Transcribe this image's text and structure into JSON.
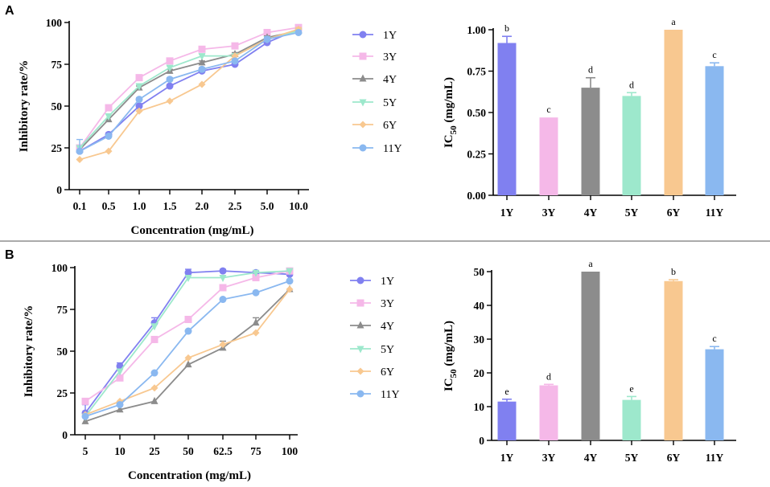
{
  "colors": {
    "1Y": "#8080f0",
    "3Y": "#f5b8e8",
    "4Y": "#8c8c8c",
    "5Y": "#9de8cc",
    "6Y": "#f8c890",
    "11Y": "#8ab8f0"
  },
  "panels": [
    {
      "letter": "A"
    },
    {
      "letter": "B"
    }
  ],
  "chart_data": [
    {
      "type": "line",
      "panel": "A",
      "xlabel": "Concentration (mg/mL)",
      "ylabel": "Inhibitory rate/%",
      "categories": [
        "0.1",
        "0.5",
        "1.0",
        "1.5",
        "2.0",
        "2.5",
        "5.0",
        "10.0"
      ],
      "ylim": [
        0,
        100
      ],
      "yticks": [
        "0",
        "25",
        "50",
        "75",
        "100"
      ],
      "series": [
        {
          "name": "1Y",
          "marker": "circle",
          "values": [
            23,
            33,
            50,
            62,
            71,
            75,
            88,
            96
          ],
          "errors": [
            0,
            0,
            1.5,
            1,
            1,
            1,
            1,
            1
          ]
        },
        {
          "name": "3Y",
          "marker": "square",
          "values": [
            25,
            49,
            67,
            77,
            84,
            86,
            94,
            97
          ],
          "errors": [
            0,
            0,
            1,
            1,
            1,
            1,
            1,
            1
          ]
        },
        {
          "name": "4Y",
          "marker": "triangle",
          "values": [
            24,
            42,
            61,
            71,
            76,
            81,
            91,
            95
          ],
          "errors": [
            0,
            0,
            1,
            1,
            1,
            1,
            1,
            1
          ]
        },
        {
          "name": "5Y",
          "marker": "triangle-down",
          "values": [
            25,
            44,
            62,
            73,
            80,
            80,
            90,
            95
          ],
          "errors": [
            0,
            0,
            1,
            1,
            1,
            1,
            1,
            1
          ]
        },
        {
          "name": "6Y",
          "marker": "diamond",
          "values": [
            18,
            23,
            47,
            53,
            63,
            80,
            90,
            96
          ],
          "errors": [
            0,
            0,
            0,
            0,
            0,
            0,
            1,
            1
          ]
        },
        {
          "name": "11Y",
          "marker": "circle",
          "values": [
            23,
            32,
            54,
            66,
            72,
            77,
            90,
            94
          ],
          "errors": [
            7,
            0,
            1,
            1,
            1,
            1,
            1,
            1
          ]
        }
      ]
    },
    {
      "type": "bar",
      "panel": "A",
      "ylabel": "IC",
      "ylabel_sub": "50",
      "ylabel_unit": " (mg/mL)",
      "categories": [
        "1Y",
        "3Y",
        "4Y",
        "5Y",
        "6Y",
        "11Y"
      ],
      "values": [
        0.92,
        0.47,
        0.65,
        0.6,
        1.0,
        0.78
      ],
      "errors": [
        0.04,
        0,
        0.06,
        0.02,
        0,
        0.02
      ],
      "significance": [
        "b",
        "c",
        "d",
        "d",
        "a",
        "c"
      ],
      "ylim": [
        0,
        1
      ],
      "yticks": [
        "0.00",
        "0.25",
        "0.50",
        "0.75",
        "1.00"
      ]
    },
    {
      "type": "line",
      "panel": "B",
      "xlabel": "Concentration (mg/mL)",
      "ylabel": "Inhibitory rate/%",
      "categories": [
        "5",
        "10",
        "25",
        "50",
        "62.5",
        "75",
        "100"
      ],
      "ylim": [
        0,
        100
      ],
      "yticks": [
        "0",
        "25",
        "50",
        "75",
        "100"
      ],
      "series": [
        {
          "name": "1Y",
          "marker": "circle",
          "values": [
            13,
            41,
            67,
            97,
            98,
            97,
            96
          ],
          "errors": [
            5,
            2,
            3,
            2,
            1,
            1,
            1
          ]
        },
        {
          "name": "3Y",
          "marker": "square",
          "values": [
            20,
            34,
            57,
            69,
            88,
            94,
            98
          ],
          "errors": [
            0,
            0,
            0,
            0,
            0,
            0,
            1
          ]
        },
        {
          "name": "4Y",
          "marker": "triangle",
          "values": [
            8,
            15,
            20,
            42,
            52,
            67,
            87
          ],
          "errors": [
            0,
            0,
            0,
            0,
            4,
            3,
            0
          ]
        },
        {
          "name": "5Y",
          "marker": "triangle-down",
          "values": [
            11,
            38,
            65,
            94,
            94,
            97,
            98
          ],
          "errors": [
            0,
            0,
            0,
            0,
            0,
            0,
            0
          ]
        },
        {
          "name": "6Y",
          "marker": "diamond",
          "values": [
            12,
            20,
            28,
            46,
            54,
            61,
            87
          ],
          "errors": [
            0,
            0,
            0,
            0,
            0,
            0,
            0
          ]
        },
        {
          "name": "11Y",
          "marker": "circle",
          "values": [
            11,
            18,
            37,
            62,
            81,
            85,
            92
          ],
          "errors": [
            0,
            0,
            0,
            0,
            0,
            0,
            0
          ]
        }
      ]
    },
    {
      "type": "bar",
      "panel": "B",
      "ylabel": "IC",
      "ylabel_sub": "50",
      "ylabel_unit": " (mg/mL)",
      "categories": [
        "1Y",
        "3Y",
        "4Y",
        "5Y",
        "6Y",
        "11Y"
      ],
      "values": [
        11.5,
        16.3,
        50,
        12,
        47.2,
        27
      ],
      "errors": [
        0.7,
        0.3,
        0,
        1,
        0.4,
        0.8
      ],
      "significance": [
        "e",
        "d",
        "a",
        "e",
        "b",
        "c"
      ],
      "ylim": [
        0,
        50
      ],
      "yticks": [
        "0",
        "10",
        "20",
        "30",
        "40",
        "50"
      ]
    }
  ]
}
